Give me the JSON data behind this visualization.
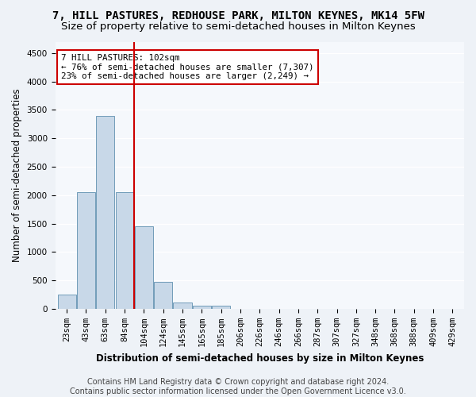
{
  "title1": "7, HILL PASTURES, REDHOUSE PARK, MILTON KEYNES, MK14 5FW",
  "title2": "Size of property relative to semi-detached houses in Milton Keynes",
  "xlabel": "Distribution of semi-detached houses by size in Milton Keynes",
  "ylabel": "Number of semi-detached properties",
  "footer": "Contains HM Land Registry data © Crown copyright and database right 2024.\nContains public sector information licensed under the Open Government Licence v3.0.",
  "bin_labels": [
    "23sqm",
    "43sqm",
    "63sqm",
    "84sqm",
    "104sqm",
    "124sqm",
    "145sqm",
    "165sqm",
    "185sqm",
    "206sqm",
    "226sqm",
    "246sqm",
    "266sqm",
    "287sqm",
    "307sqm",
    "327sqm",
    "348sqm",
    "368sqm",
    "388sqm",
    "409sqm",
    "429sqm"
  ],
  "bar_heights": [
    250,
    2050,
    3400,
    2050,
    1450,
    470,
    110,
    60,
    50,
    0,
    0,
    0,
    0,
    0,
    0,
    0,
    0,
    0,
    0,
    0,
    0
  ],
  "bar_color": "#c8d8e8",
  "bar_edge_color": "#6090b0",
  "vline_x": 4,
  "vline_color": "#cc0000",
  "annotation_text": "7 HILL PASTURES: 102sqm\n← 76% of semi-detached houses are smaller (7,307)\n23% of semi-detached houses are larger (2,249) →",
  "annotation_box_color": "white",
  "annotation_box_edge": "#cc0000",
  "ylim": [
    0,
    4700
  ],
  "yticks": [
    0,
    500,
    1000,
    1500,
    2000,
    2500,
    3000,
    3500,
    4000,
    4500
  ],
  "bg_color": "#eef2f7",
  "plot_bg_color": "#f5f8fc",
  "grid_color": "#ffffff",
  "title1_fontsize": 10,
  "title2_fontsize": 9.5,
  "tick_fontsize": 7.5,
  "ylabel_fontsize": 8.5,
  "xlabel_fontsize": 8.5,
  "annotation_fontsize": 7.8,
  "footer_fontsize": 7
}
